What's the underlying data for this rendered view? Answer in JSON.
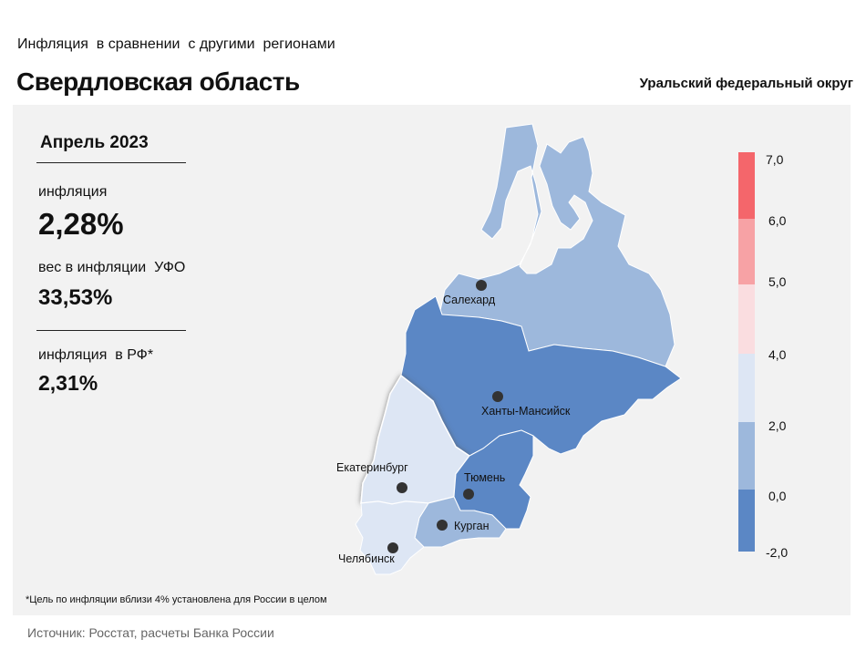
{
  "header": {
    "subtitle": "Инфляция  в сравнении  с другими  регионами",
    "title": "Свердловская область",
    "district": "Уральский федеральный округ"
  },
  "stats": {
    "period": "Апрель 2023",
    "inflation_label": "инфляция",
    "inflation_value": "2,28%",
    "weight_label": "вес в инфляции  УФО",
    "weight_value": "33,53%",
    "rf_label": "инфляция  в РФ*",
    "rf_value": "2,31%"
  },
  "legend": {
    "ticks": [
      "7,0",
      "6,0",
      "5,0",
      "4,0",
      "2,0",
      "0,0",
      "-2,0"
    ],
    "colors": [
      "#f4666b",
      "#f7a2a5",
      "#fadde0",
      "#dde6f4",
      "#9db8dc",
      "#5b87c5"
    ]
  },
  "map": {
    "regions": [
      {
        "name": "ЯНАО",
        "color": "#9db8dc"
      },
      {
        "name": "ХМАО",
        "color": "#5b87c5"
      },
      {
        "name": "Свердловская область",
        "color": "#dde6f4"
      },
      {
        "name": "Тюменская область",
        "color": "#5b87c5"
      },
      {
        "name": "Курганская область",
        "color": "#9db8dc"
      },
      {
        "name": "Челябинская область",
        "color": "#dde6f4"
      }
    ],
    "cities": [
      "Салехард",
      "Ханты-Мансийск",
      "Екатеринбург",
      "Тюмень",
      "Курган",
      "Челябинск"
    ]
  },
  "footnote": "*Цель по инфляции вблизи 4% установлена для России в целом",
  "source": "Источник: Росстат, расчеты Банка России"
}
